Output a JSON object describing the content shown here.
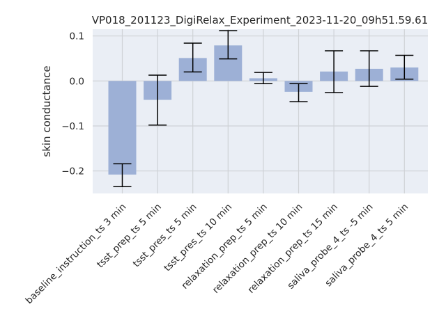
{
  "chart_data": {
    "type": "bar",
    "title": "VP018_201123_DigiRelax_Experiment_2023-11-20_09h51.59.61",
    "xlabel": "",
    "ylabel": "skin conductance",
    "ylim": [
      -0.25,
      0.115
    ],
    "yticks": [
      -0.2,
      -0.1,
      0.0,
      0.1
    ],
    "ytick_labels": [
      "−0.2",
      "−0.1",
      "0.0",
      "0.1"
    ],
    "grid": true,
    "categories": [
      "baseline_instruction_ts 3 min",
      "tsst_prep_ts 5 min",
      "tsst_pres_ts 5 min",
      "tsst_pres_ts 10 min",
      "relaxation_prep_ts 5 min",
      "relaxation_prep_ts 10 min",
      "relaxation_prep_ts 15 min",
      "saliva_probe_4_ts -5 min",
      "saliva_probe_4_ts 5 min"
    ],
    "values": [
      -0.208,
      -0.042,
      0.051,
      0.079,
      0.006,
      -0.024,
      0.021,
      0.027,
      0.03
    ],
    "error_low": [
      -0.235,
      -0.098,
      0.02,
      0.049,
      -0.006,
      -0.046,
      -0.026,
      -0.012,
      0.004
    ],
    "error_high": [
      -0.184,
      0.013,
      0.084,
      0.112,
      0.019,
      -0.006,
      0.067,
      0.067,
      0.057
    ],
    "colors": {
      "bar": "#9db0d6",
      "background": "#eaeef5",
      "grid": "#cfd2d6",
      "error_bar": "#000000",
      "text": "#262626"
    }
  }
}
